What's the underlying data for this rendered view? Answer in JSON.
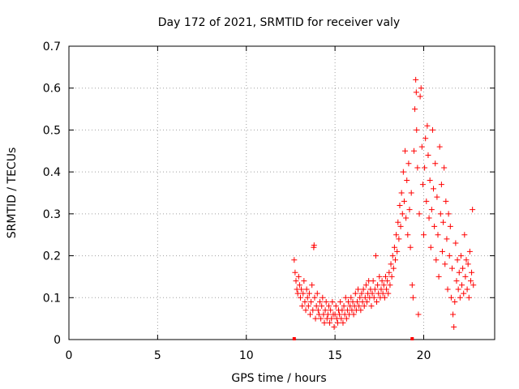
{
  "chart_data": {
    "type": "scatter",
    "title": "Day 172 of 2021, SRMTID for receiver valy",
    "xlabel": "GPS time / hours",
    "ylabel": "SRMTID / TECUs",
    "xlim": [
      0,
      24
    ],
    "ylim": [
      0,
      0.7
    ],
    "xticks": [
      0,
      5,
      10,
      15,
      20
    ],
    "xtick_labels": [
      "0",
      "5",
      "10",
      "15",
      "20"
    ],
    "yticks": [
      0,
      0.1,
      0.2,
      0.3,
      0.4,
      0.5,
      0.6,
      0.7
    ],
    "ytick_labels": [
      "0",
      "0.1",
      "0.2",
      "0.3",
      "0.4",
      "0.5",
      "0.6",
      "0.7"
    ],
    "grid": true,
    "marker": "plus",
    "color": "#ff0000",
    "series": [
      {
        "name": "SRMTID",
        "points": [
          [
            12.7,
            0.19
          ],
          [
            12.75,
            0.16
          ],
          [
            12.8,
            0.14
          ],
          [
            12.85,
            0.12
          ],
          [
            12.9,
            0.11
          ],
          [
            12.95,
            0.15
          ],
          [
            13.0,
            0.13
          ],
          [
            13.05,
            0.1
          ],
          [
            13.1,
            0.12
          ],
          [
            13.15,
            0.08
          ],
          [
            13.2,
            0.11
          ],
          [
            13.25,
            0.14
          ],
          [
            13.3,
            0.09
          ],
          [
            13.35,
            0.07
          ],
          [
            13.4,
            0.12
          ],
          [
            13.45,
            0.1
          ],
          [
            13.5,
            0.08
          ],
          [
            13.55,
            0.11
          ],
          [
            13.6,
            0.06
          ],
          [
            13.65,
            0.09
          ],
          [
            13.7,
            0.13
          ],
          [
            13.75,
            0.07
          ],
          [
            13.8,
            0.22
          ],
          [
            13.82,
            0.225
          ],
          [
            13.85,
            0.1
          ],
          [
            13.9,
            0.05
          ],
          [
            13.95,
            0.08
          ],
          [
            14.0,
            0.11
          ],
          [
            14.05,
            0.07
          ],
          [
            14.1,
            0.06
          ],
          [
            14.15,
            0.09
          ],
          [
            14.2,
            0.05
          ],
          [
            14.25,
            0.08
          ],
          [
            14.3,
            0.1
          ],
          [
            14.35,
            0.06
          ],
          [
            14.4,
            0.04
          ],
          [
            14.45,
            0.07
          ],
          [
            14.5,
            0.09
          ],
          [
            14.55,
            0.05
          ],
          [
            14.6,
            0.06
          ],
          [
            14.65,
            0.08
          ],
          [
            14.7,
            0.04
          ],
          [
            14.75,
            0.07
          ],
          [
            14.8,
            0.05
          ],
          [
            14.85,
            0.09
          ],
          [
            14.9,
            0.06
          ],
          [
            14.95,
            0.03
          ],
          [
            15.0,
            0.06
          ],
          [
            15.05,
            0.08
          ],
          [
            15.1,
            0.05
          ],
          [
            15.15,
            0.04
          ],
          [
            15.2,
            0.07
          ],
          [
            15.25,
            0.06
          ],
          [
            15.3,
            0.09
          ],
          [
            15.35,
            0.05
          ],
          [
            15.4,
            0.07
          ],
          [
            15.45,
            0.04
          ],
          [
            15.5,
            0.08
          ],
          [
            15.55,
            0.06
          ],
          [
            15.6,
            0.1
          ],
          [
            15.65,
            0.05
          ],
          [
            15.7,
            0.07
          ],
          [
            15.75,
            0.09
          ],
          [
            15.8,
            0.06
          ],
          [
            15.85,
            0.08
          ],
          [
            15.9,
            0.1
          ],
          [
            15.95,
            0.07
          ],
          [
            16.0,
            0.09
          ],
          [
            16.05,
            0.06
          ],
          [
            16.1,
            0.08
          ],
          [
            16.15,
            0.11
          ],
          [
            16.2,
            0.07
          ],
          [
            16.25,
            0.09
          ],
          [
            16.3,
            0.12
          ],
          [
            16.35,
            0.08
          ],
          [
            16.4,
            0.1
          ],
          [
            16.45,
            0.07
          ],
          [
            16.5,
            0.11
          ],
          [
            16.55,
            0.09
          ],
          [
            16.6,
            0.12
          ],
          [
            16.65,
            0.08
          ],
          [
            16.7,
            0.1
          ],
          [
            16.75,
            0.13
          ],
          [
            16.8,
            0.09
          ],
          [
            16.85,
            0.11
          ],
          [
            16.9,
            0.14
          ],
          [
            16.95,
            0.1
          ],
          [
            17.0,
            0.12
          ],
          [
            17.05,
            0.08
          ],
          [
            17.1,
            0.11
          ],
          [
            17.15,
            0.14
          ],
          [
            17.2,
            0.1
          ],
          [
            17.25,
            0.12
          ],
          [
            17.3,
            0.2
          ],
          [
            17.35,
            0.09
          ],
          [
            17.4,
            0.13
          ],
          [
            17.45,
            0.11
          ],
          [
            17.5,
            0.15
          ],
          [
            17.55,
            0.1
          ],
          [
            17.6,
            0.12
          ],
          [
            17.65,
            0.14
          ],
          [
            17.7,
            0.11
          ],
          [
            17.75,
            0.13
          ],
          [
            17.8,
            0.1
          ],
          [
            17.85,
            0.15
          ],
          [
            17.9,
            0.12
          ],
          [
            17.95,
            0.14
          ],
          [
            18.0,
            0.11
          ],
          [
            18.05,
            0.16
          ],
          [
            18.1,
            0.13
          ],
          [
            18.15,
            0.18
          ],
          [
            18.2,
            0.15
          ],
          [
            18.25,
            0.2
          ],
          [
            18.3,
            0.17
          ],
          [
            18.35,
            0.22
          ],
          [
            18.4,
            0.19
          ],
          [
            18.45,
            0.25
          ],
          [
            18.5,
            0.21
          ],
          [
            18.55,
            0.28
          ],
          [
            18.6,
            0.24
          ],
          [
            18.65,
            0.32
          ],
          [
            18.7,
            0.27
          ],
          [
            18.75,
            0.35
          ],
          [
            18.8,
            0.3
          ],
          [
            18.85,
            0.4
          ],
          [
            18.9,
            0.33
          ],
          [
            18.95,
            0.45
          ],
          [
            19.0,
            0.29
          ],
          [
            19.05,
            0.38
          ],
          [
            19.1,
            0.25
          ],
          [
            19.15,
            0.42
          ],
          [
            19.2,
            0.31
          ],
          [
            19.25,
            0.22
          ],
          [
            19.3,
            0.35
          ],
          [
            19.35,
            0.13
          ],
          [
            19.4,
            0.1
          ],
          [
            19.45,
            0.45
          ],
          [
            19.5,
            0.55
          ],
          [
            19.55,
            0.62
          ],
          [
            19.58,
            0.59
          ],
          [
            19.6,
            0.5
          ],
          [
            19.65,
            0.41
          ],
          [
            19.7,
            0.06
          ],
          [
            19.75,
            0.3
          ],
          [
            19.8,
            0.58
          ],
          [
            19.85,
            0.6
          ],
          [
            19.9,
            0.46
          ],
          [
            19.95,
            0.37
          ],
          [
            20.0,
            0.25
          ],
          [
            20.05,
            0.41
          ],
          [
            20.1,
            0.48
          ],
          [
            20.15,
            0.33
          ],
          [
            20.2,
            0.51
          ],
          [
            20.25,
            0.44
          ],
          [
            20.3,
            0.29
          ],
          [
            20.35,
            0.38
          ],
          [
            20.4,
            0.22
          ],
          [
            20.45,
            0.31
          ],
          [
            20.5,
            0.5
          ],
          [
            20.55,
            0.36
          ],
          [
            20.6,
            0.27
          ],
          [
            20.65,
            0.42
          ],
          [
            20.7,
            0.19
          ],
          [
            20.75,
            0.34
          ],
          [
            20.8,
            0.25
          ],
          [
            20.85,
            0.15
          ],
          [
            20.9,
            0.46
          ],
          [
            20.95,
            0.3
          ],
          [
            21.0,
            0.37
          ],
          [
            21.05,
            0.21
          ],
          [
            21.1,
            0.28
          ],
          [
            21.15,
            0.41
          ],
          [
            21.2,
            0.18
          ],
          [
            21.25,
            0.33
          ],
          [
            21.3,
            0.24
          ],
          [
            21.35,
            0.12
          ],
          [
            21.4,
            0.3
          ],
          [
            21.45,
            0.2
          ],
          [
            21.5,
            0.27
          ],
          [
            21.55,
            0.1
          ],
          [
            21.6,
            0.17
          ],
          [
            21.65,
            0.06
          ],
          [
            21.7,
            0.03
          ],
          [
            21.75,
            0.09
          ],
          [
            21.8,
            0.23
          ],
          [
            21.85,
            0.14
          ],
          [
            21.9,
            0.19
          ],
          [
            21.95,
            0.12
          ],
          [
            22.0,
            0.16
          ],
          [
            22.05,
            0.1
          ],
          [
            22.1,
            0.2
          ],
          [
            22.15,
            0.13
          ],
          [
            22.2,
            0.17
          ],
          [
            22.25,
            0.11
          ],
          [
            22.3,
            0.25
          ],
          [
            22.35,
            0.15
          ],
          [
            22.4,
            0.19
          ],
          [
            22.45,
            0.12
          ],
          [
            22.5,
            0.18
          ],
          [
            22.55,
            0.1
          ],
          [
            22.6,
            0.21
          ],
          [
            22.65,
            0.14
          ],
          [
            22.7,
            0.16
          ],
          [
            22.75,
            0.31
          ],
          [
            22.8,
            0.13
          ]
        ]
      }
    ],
    "baseline_markers": [
      12.7,
      19.35
    ]
  }
}
